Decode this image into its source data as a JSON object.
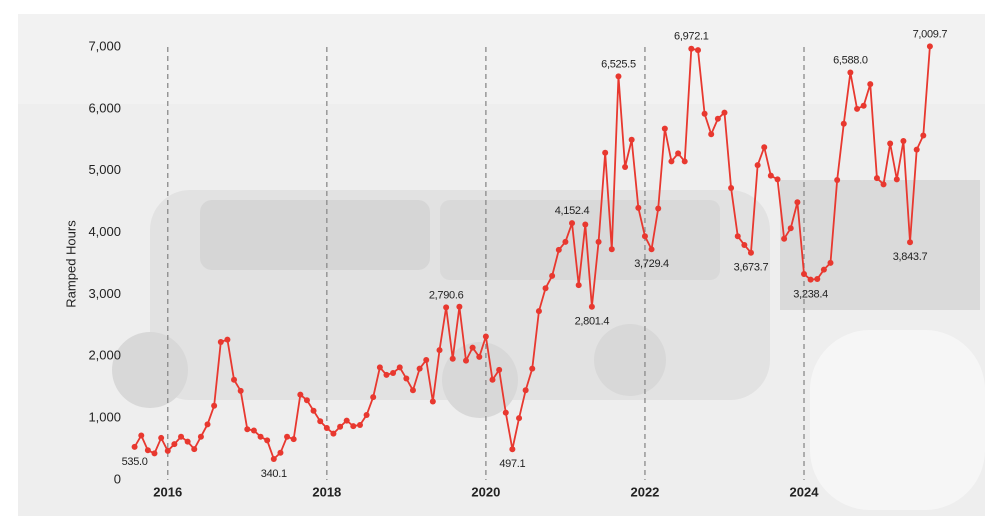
{
  "chart_data": {
    "type": "line",
    "y_label": "Ramped Hours",
    "x": [
      2015.583,
      2015.667,
      2015.75,
      2015.833,
      2015.917,
      2016,
      2016.083,
      2016.167,
      2016.25,
      2016.333,
      2016.417,
      2016.5,
      2016.583,
      2016.667,
      2016.75,
      2016.833,
      2016.917,
      2017,
      2017.083,
      2017.167,
      2017.25,
      2017.333,
      2017.417,
      2017.5,
      2017.583,
      2017.667,
      2017.75,
      2017.833,
      2017.917,
      2018,
      2018.083,
      2018.167,
      2018.25,
      2018.333,
      2018.417,
      2018.5,
      2018.583,
      2018.667,
      2018.75,
      2018.833,
      2018.917,
      2019,
      2019.083,
      2019.167,
      2019.25,
      2019.333,
      2019.417,
      2019.5,
      2019.583,
      2019.667,
      2019.75,
      2019.833,
      2019.917,
      2020,
      2020.083,
      2020.167,
      2020.25,
      2020.333,
      2020.417,
      2020.5,
      2020.583,
      2020.667,
      2020.75,
      2020.833,
      2020.917,
      2021,
      2021.083,
      2021.167,
      2021.25,
      2021.333,
      2021.417,
      2021.5,
      2021.583,
      2021.667,
      2021.75,
      2021.833,
      2021.917,
      2022,
      2022.083,
      2022.167,
      2022.25,
      2022.333,
      2022.417,
      2022.5,
      2022.583,
      2022.667,
      2022.75,
      2022.833,
      2022.917,
      2023,
      2023.083,
      2023.167,
      2023.25,
      2023.333,
      2023.417,
      2023.5,
      2023.583,
      2023.667,
      2023.75,
      2023.833,
      2023.917,
      2024,
      2024.083,
      2024.167,
      2024.25,
      2024.333,
      2024.417,
      2024.5,
      2024.583,
      2024.667,
      2024.75,
      2024.833,
      2024.917,
      2025,
      2025.083,
      2025.167,
      2025.25,
      2025.333,
      2025.417,
      2025.5,
      2025.583
    ],
    "series": [
      {
        "color": "#e8382f",
        "values": [
          535,
          720,
          480,
          430,
          680,
          470,
          580,
          700,
          620,
          500,
          700,
          900,
          1200,
          2230,
          2270,
          1620,
          1440,
          820,
          800,
          700,
          640,
          340.1,
          440,
          700,
          660,
          1380,
          1290,
          1120,
          950,
          840,
          750,
          860,
          960,
          870,
          890,
          1050,
          1340,
          1820,
          1700,
          1730,
          1820,
          1640,
          1450,
          1800,
          1940,
          1270,
          2100,
          2790.6,
          1960,
          2800,
          1930,
          2140,
          1990,
          2320,
          1620,
          1780,
          1090,
          497.1,
          1000,
          1450,
          1800,
          2730,
          3100,
          3300,
          3720,
          3850,
          4152.4,
          3150,
          4130,
          2801.4,
          3850,
          5290,
          3730,
          6525.5,
          5060,
          5500,
          4400,
          3940,
          3729.4,
          4390,
          5680,
          5150,
          5280,
          5150,
          6972.1,
          6950,
          5920,
          5590,
          5840,
          5940,
          4720,
          3940,
          3800,
          3673.7,
          5090,
          5380,
          4920,
          4860,
          3900,
          4070,
          4490,
          3330,
          3238.4,
          3250,
          3400,
          3510,
          4850,
          5760,
          6588,
          6000,
          6050,
          6400,
          4880,
          4780,
          5440,
          4860,
          5480,
          3843.7,
          5340,
          5570,
          7009.7
        ],
        "value_labels": [
          "535.0",
          null,
          null,
          null,
          null,
          null,
          null,
          null,
          null,
          null,
          null,
          null,
          null,
          null,
          null,
          null,
          null,
          null,
          null,
          null,
          null,
          "340.1",
          null,
          null,
          null,
          null,
          null,
          null,
          null,
          null,
          null,
          null,
          null,
          null,
          null,
          null,
          null,
          null,
          null,
          null,
          null,
          null,
          null,
          null,
          null,
          null,
          null,
          "2,790.6",
          null,
          null,
          null,
          null,
          null,
          null,
          null,
          null,
          null,
          "497.1",
          null,
          null,
          null,
          null,
          null,
          null,
          null,
          null,
          "4,152.4",
          null,
          null,
          "2,801.4",
          null,
          null,
          null,
          "6,525.5",
          null,
          null,
          null,
          null,
          "3,729.4",
          null,
          null,
          null,
          null,
          null,
          "6,972.1",
          null,
          null,
          null,
          null,
          null,
          null,
          null,
          null,
          "3,673.7",
          null,
          null,
          null,
          null,
          null,
          null,
          null,
          null,
          "3,238.4",
          null,
          null,
          null,
          null,
          null,
          "6,588.0",
          null,
          null,
          null,
          null,
          null,
          null,
          null,
          null,
          "3,843.7",
          null,
          null,
          "7,009.7"
        ]
      }
    ],
    "xlim": [
      2015.5,
      2026.15
    ],
    "xticks": [
      2016,
      2018,
      2020,
      2022,
      2024
    ],
    "ylim": [
      0,
      7000
    ],
    "yticks": [
      0,
      {
        "value": 1000,
        "label": "1,000"
      },
      {
        "value": 2000,
        "label": "2,000"
      },
      {
        "value": 3000,
        "label": "3,000"
      },
      {
        "value": 4000,
        "label": "4,000"
      },
      {
        "value": 5000,
        "label": "5,000"
      },
      {
        "value": 6000,
        "label": "6,000"
      },
      {
        "value": 7000,
        "label": "7,000"
      }
    ],
    "grid": true
  }
}
